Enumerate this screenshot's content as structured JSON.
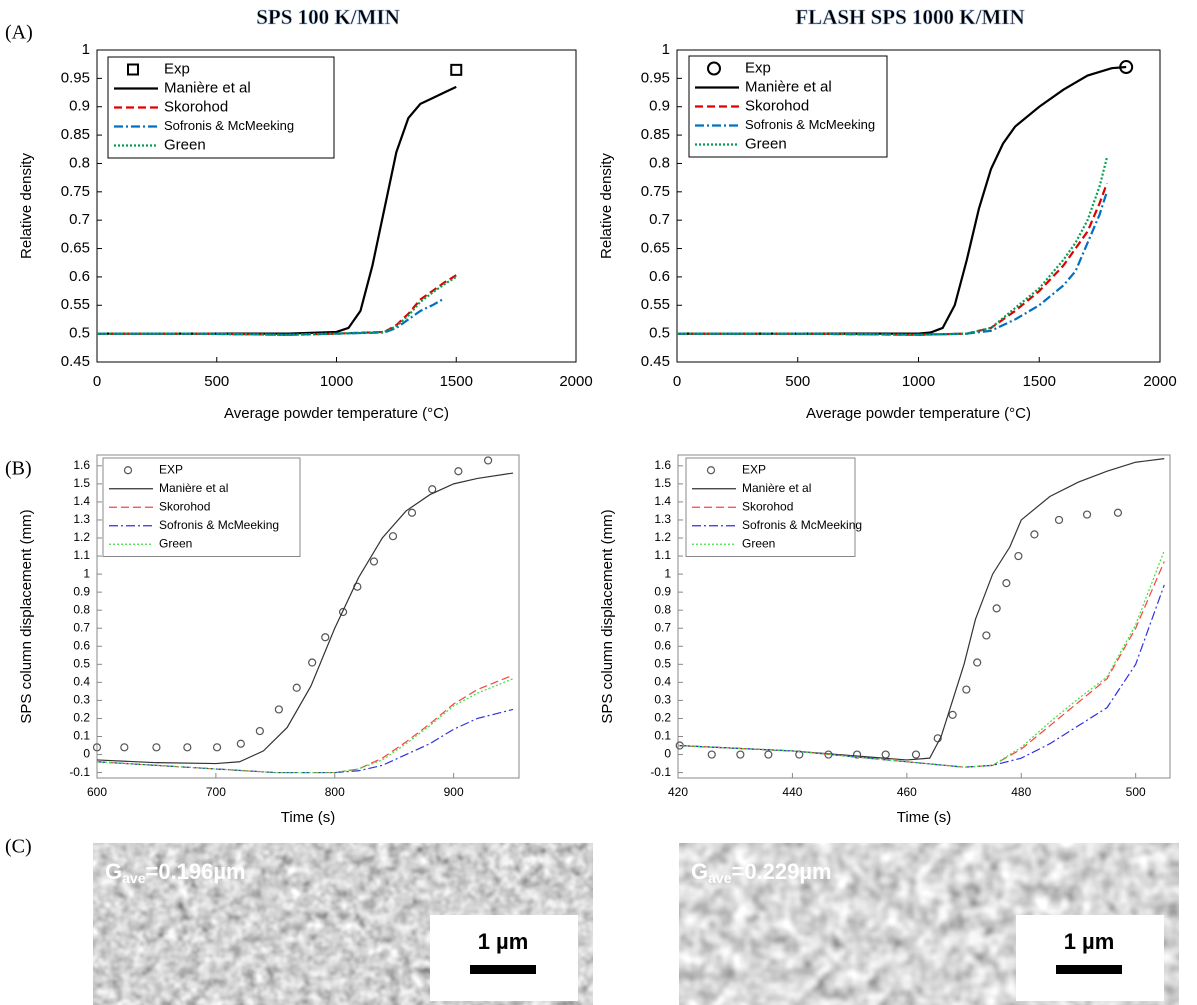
{
  "panel_labels": [
    "(A)",
    "(B)",
    "(C)"
  ],
  "column_titles": [
    "SPS 100 K/MIN",
    "FLASH SPS 1000 K/MIN"
  ],
  "chart_data": [
    {
      "type": "line",
      "xlabel": "Average powder temperature (°C)",
      "ylabel": "Relative density",
      "xlim": [
        0,
        2000
      ],
      "xticks": [
        0,
        500,
        1000,
        1500,
        2000
      ],
      "ylim": [
        0.45,
        1
      ],
      "yticks": [
        0.45,
        0.5,
        0.55,
        0.6,
        0.65,
        0.7,
        0.75,
        0.8,
        0.85,
        0.9,
        0.95,
        1
      ],
      "legend": "upper left",
      "series": [
        {
          "name": "Exp",
          "color": "#000000",
          "dash": "none",
          "marker": "square",
          "x": [
            1500
          ],
          "values": [
            0.965
          ]
        },
        {
          "name": "Manière et al",
          "color": "#000000",
          "dash": "solid",
          "marker": "none",
          "x": [
            0,
            200,
            400,
            600,
            800,
            1000,
            1050,
            1100,
            1150,
            1200,
            1250,
            1300,
            1350,
            1400,
            1450,
            1500
          ],
          "values": [
            0.5,
            0.5,
            0.5,
            0.5,
            0.5,
            0.503,
            0.51,
            0.54,
            0.62,
            0.72,
            0.82,
            0.88,
            0.905,
            0.915,
            0.925,
            0.935
          ]
        },
        {
          "name": "Skorohod",
          "color": "#e00000",
          "dash": "dashed",
          "marker": "none",
          "x": [
            0,
            400,
            800,
            1000,
            1200,
            1250,
            1300,
            1350,
            1400,
            1450,
            1500
          ],
          "values": [
            0.5,
            0.5,
            0.498,
            0.5,
            0.503,
            0.515,
            0.535,
            0.56,
            0.575,
            0.59,
            0.603
          ]
        },
        {
          "name": "Sofronis & McMeeking",
          "color": "#0070c0",
          "dash": "dashdot",
          "marker": "none",
          "x": [
            0,
            400,
            800,
            1000,
            1200,
            1250,
            1300,
            1350,
            1400,
            1450
          ],
          "values": [
            0.5,
            0.5,
            0.498,
            0.5,
            0.502,
            0.51,
            0.525,
            0.54,
            0.55,
            0.562
          ]
        },
        {
          "name": "Green",
          "color": "#00a050",
          "dash": "dotted",
          "marker": "none",
          "x": [
            0,
            400,
            800,
            1000,
            1200,
            1250,
            1300,
            1350,
            1400,
            1450,
            1500
          ],
          "values": [
            0.5,
            0.5,
            0.498,
            0.5,
            0.503,
            0.513,
            0.532,
            0.556,
            0.572,
            0.587,
            0.6
          ]
        }
      ]
    },
    {
      "type": "line",
      "xlabel": "Average powder temperature (°C)",
      "ylabel": "Relative density",
      "xlim": [
        0,
        2000
      ],
      "xticks": [
        0,
        500,
        1000,
        1500,
        2000
      ],
      "ylim": [
        0.45,
        1
      ],
      "yticks": [
        0.45,
        0.5,
        0.55,
        0.6,
        0.65,
        0.7,
        0.75,
        0.8,
        0.85,
        0.9,
        0.95,
        1
      ],
      "legend": "upper left",
      "series": [
        {
          "name": "Exp",
          "color": "#000000",
          "dash": "none",
          "marker": "circle",
          "x": [
            1860
          ],
          "values": [
            0.97
          ]
        },
        {
          "name": "Manière et al",
          "color": "#000000",
          "dash": "solid",
          "marker": "none",
          "x": [
            0,
            500,
            1000,
            1050,
            1100,
            1150,
            1200,
            1250,
            1300,
            1350,
            1400,
            1500,
            1600,
            1700,
            1800,
            1860
          ],
          "values": [
            0.5,
            0.5,
            0.5,
            0.502,
            0.51,
            0.55,
            0.63,
            0.72,
            0.79,
            0.835,
            0.865,
            0.9,
            0.93,
            0.955,
            0.968,
            0.97
          ]
        },
        {
          "name": "Skorohod",
          "color": "#e00000",
          "dash": "dashed",
          "marker": "none",
          "x": [
            0,
            500,
            1000,
            1200,
            1300,
            1400,
            1500,
            1600,
            1650,
            1700,
            1750,
            1780
          ],
          "values": [
            0.5,
            0.5,
            0.498,
            0.5,
            0.51,
            0.54,
            0.575,
            0.62,
            0.65,
            0.68,
            0.73,
            0.765
          ]
        },
        {
          "name": "Sofronis & McMeeking",
          "color": "#0070c0",
          "dash": "dashdot",
          "marker": "none",
          "x": [
            0,
            500,
            1000,
            1200,
            1300,
            1400,
            1500,
            1600,
            1650,
            1700,
            1750,
            1780
          ],
          "values": [
            0.5,
            0.5,
            0.498,
            0.5,
            0.505,
            0.525,
            0.55,
            0.585,
            0.61,
            0.66,
            0.71,
            0.75
          ]
        },
        {
          "name": "Green",
          "color": "#00a050",
          "dash": "dotted",
          "marker": "none",
          "x": [
            0,
            500,
            1000,
            1200,
            1300,
            1400,
            1500,
            1600,
            1650,
            1700,
            1750,
            1780
          ],
          "values": [
            0.5,
            0.5,
            0.498,
            0.5,
            0.51,
            0.545,
            0.58,
            0.63,
            0.66,
            0.7,
            0.76,
            0.81
          ]
        }
      ]
    },
    {
      "type": "line",
      "xlabel": "Time (s)",
      "ylabel": "SPS column displacement (mm)",
      "xlim": [
        600,
        955
      ],
      "xticks": [
        600,
        700,
        800,
        900
      ],
      "ylim": [
        -0.13,
        1.66
      ],
      "yticks": [
        -0.1,
        0,
        0.1,
        0.2,
        0.3,
        0.4,
        0.5,
        0.6,
        0.7,
        0.8,
        0.9,
        1,
        1.1,
        1.2,
        1.3,
        1.4,
        1.5,
        1.6
      ],
      "legend": "upper left",
      "series": [
        {
          "name": "EXP",
          "color": "#555555",
          "dash": "none",
          "marker": "circle",
          "x": [
            600,
            623,
            650,
            676,
            701,
            721,
            737,
            753,
            768,
            781,
            792,
            807,
            819,
            833,
            849,
            865,
            882,
            904,
            929
          ],
          "values": [
            0.04,
            0.04,
            0.04,
            0.04,
            0.04,
            0.06,
            0.13,
            0.25,
            0.37,
            0.51,
            0.65,
            0.79,
            0.93,
            1.07,
            1.21,
            1.34,
            1.47,
            1.57,
            1.63
          ]
        },
        {
          "name": "Manière et al",
          "color": "#333333",
          "dash": "solid",
          "marker": "none",
          "x": [
            600,
            650,
            700,
            720,
            740,
            760,
            780,
            800,
            820,
            840,
            860,
            880,
            900,
            920,
            950
          ],
          "values": [
            -0.03,
            -0.045,
            -0.05,
            -0.04,
            0.02,
            0.15,
            0.38,
            0.7,
            0.98,
            1.2,
            1.35,
            1.44,
            1.5,
            1.53,
            1.56
          ]
        },
        {
          "name": "Skorohod",
          "color": "#ff4040",
          "dash": "dashed",
          "marker": "none",
          "x": [
            600,
            700,
            750,
            800,
            820,
            840,
            860,
            880,
            900,
            920,
            950
          ],
          "values": [
            -0.04,
            -0.08,
            -0.1,
            -0.1,
            -0.08,
            -0.02,
            0.07,
            0.17,
            0.28,
            0.36,
            0.44
          ]
        },
        {
          "name": "Sofronis & McMeeking",
          "color": "#3030e0",
          "dash": "dashdot",
          "marker": "none",
          "x": [
            600,
            700,
            750,
            800,
            820,
            840,
            860,
            880,
            900,
            920,
            950
          ],
          "values": [
            -0.04,
            -0.08,
            -0.1,
            -0.1,
            -0.09,
            -0.06,
            0.0,
            0.06,
            0.14,
            0.2,
            0.25
          ]
        },
        {
          "name": "Green",
          "color": "#40e040",
          "dash": "dotted",
          "marker": "none",
          "x": [
            600,
            700,
            750,
            800,
            820,
            840,
            860,
            880,
            900,
            920,
            950
          ],
          "values": [
            -0.04,
            -0.08,
            -0.1,
            -0.1,
            -0.08,
            -0.03,
            0.06,
            0.16,
            0.27,
            0.34,
            0.42
          ]
        }
      ]
    },
    {
      "type": "line",
      "xlabel": "Time (s)",
      "ylabel": "SPS column displacement (mm)",
      "xlim": [
        420,
        506
      ],
      "xticks": [
        420,
        440,
        460,
        480,
        500
      ],
      "ylim": [
        -0.13,
        1.66
      ],
      "yticks": [
        -0.1,
        0,
        0.1,
        0.2,
        0.3,
        0.4,
        0.5,
        0.6,
        0.7,
        0.8,
        0.9,
        1,
        1.1,
        1.2,
        1.3,
        1.4,
        1.5,
        1.6
      ],
      "legend": "upper left",
      "series": [
        {
          "name": "EXP",
          "color": "#555555",
          "dash": "none",
          "marker": "circle",
          "x": [
            420.3,
            425.9,
            430.9,
            435.8,
            441.2,
            446.3,
            451.3,
            456.3,
            461.6,
            465.4,
            468,
            470.4,
            472.3,
            473.9,
            475.7,
            477.4,
            479.5,
            482.3,
            486.6,
            491.5,
            496.9
          ],
          "values": [
            0.05,
            0,
            0,
            0,
            0,
            0,
            0,
            0,
            0,
            0.09,
            0.22,
            0.36,
            0.51,
            0.66,
            0.81,
            0.95,
            1.1,
            1.22,
            1.3,
            1.33,
            1.34
          ]
        },
        {
          "name": "Manière et al",
          "color": "#333333",
          "dash": "solid",
          "marker": "none",
          "x": [
            420,
            440,
            460,
            464,
            466,
            468,
            470,
            472,
            475,
            478,
            480,
            485,
            490,
            495,
            500,
            505
          ],
          "values": [
            0.05,
            0.02,
            -0.03,
            -0.02,
            0.1,
            0.3,
            0.5,
            0.75,
            1.0,
            1.15,
            1.3,
            1.43,
            1.51,
            1.57,
            1.62,
            1.64
          ]
        },
        {
          "name": "Skorohod",
          "color": "#ff4040",
          "dash": "dashed",
          "marker": "none",
          "x": [
            420,
            440,
            460,
            470,
            475,
            480,
            485,
            490,
            495,
            500,
            505
          ],
          "values": [
            0.05,
            0.02,
            -0.04,
            -0.07,
            -0.06,
            0.03,
            0.16,
            0.29,
            0.42,
            0.7,
            1.07
          ]
        },
        {
          "name": "Sofronis & McMeeking",
          "color": "#3030e0",
          "dash": "dashdot",
          "marker": "none",
          "x": [
            420,
            440,
            460,
            470,
            475,
            480,
            485,
            490,
            495,
            500,
            505
          ],
          "values": [
            0.05,
            0.02,
            -0.04,
            -0.07,
            -0.06,
            -0.02,
            0.06,
            0.16,
            0.26,
            0.5,
            0.94
          ]
        },
        {
          "name": "Green",
          "color": "#40e040",
          "dash": "dotted",
          "marker": "none",
          "x": [
            420,
            440,
            460,
            470,
            475,
            480,
            485,
            490,
            495,
            500,
            505
          ],
          "values": [
            0.05,
            0.02,
            -0.04,
            -0.07,
            -0.06,
            0.04,
            0.18,
            0.31,
            0.43,
            0.72,
            1.13
          ]
        }
      ]
    }
  ],
  "micrographs": [
    {
      "grain_symbol": "G",
      "grain_subscript": "ave",
      "grain_value": "=0.196µm",
      "scale_bar": "1 µm"
    },
    {
      "grain_symbol": "G",
      "grain_subscript": "ave",
      "grain_value": "=0.229µm",
      "scale_bar": "1 µm"
    }
  ]
}
